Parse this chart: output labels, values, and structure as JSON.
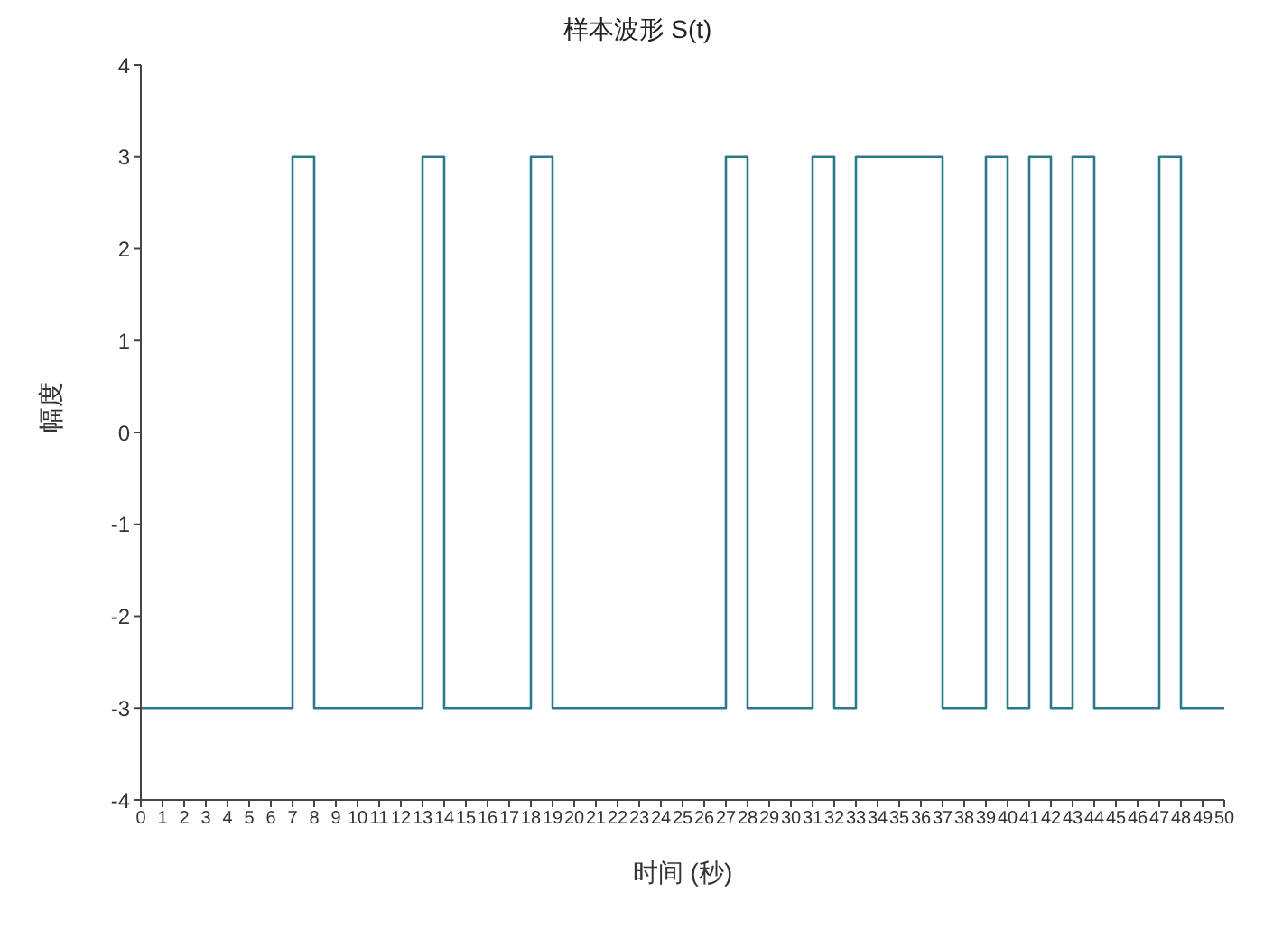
{
  "chart_data": {
    "type": "step",
    "title": "样本波形 S(t)",
    "xlabel": "时间 (秒)",
    "ylabel": "幅度",
    "x": [
      0,
      1,
      2,
      3,
      4,
      5,
      6,
      7,
      8,
      9,
      10,
      11,
      12,
      13,
      14,
      15,
      16,
      17,
      18,
      19,
      20,
      21,
      22,
      23,
      24,
      25,
      26,
      27,
      28,
      29,
      30,
      31,
      32,
      33,
      34,
      35,
      36,
      37,
      38,
      39,
      40,
      41,
      42,
      43,
      44,
      45,
      46,
      47,
      48,
      49,
      50
    ],
    "series": [
      {
        "color": "#2a7a8c",
        "values": [
          -3,
          -3,
          -3,
          -3,
          -3,
          -3,
          -3,
          3,
          -3,
          -3,
          -3,
          -3,
          -3,
          3,
          -3,
          -3,
          -3,
          -3,
          3,
          -3,
          -3,
          -3,
          -3,
          -3,
          -3,
          -3,
          -3,
          3,
          -3,
          -3,
          -3,
          3,
          -3,
          3,
          3,
          3,
          3,
          -3,
          -3,
          3,
          -3,
          3,
          -3,
          3,
          -3,
          -3,
          -3,
          3,
          -3,
          -3,
          -3
        ]
      }
    ],
    "xlim": [
      0,
      50
    ],
    "xticks": [
      0,
      1,
      2,
      3,
      4,
      5,
      6,
      7,
      8,
      9,
      10,
      11,
      12,
      13,
      14,
      15,
      16,
      17,
      18,
      19,
      20,
      21,
      22,
      23,
      24,
      25,
      26,
      27,
      28,
      29,
      30,
      31,
      32,
      33,
      34,
      35,
      36,
      37,
      38,
      39,
      40,
      41,
      42,
      43,
      44,
      45,
      46,
      47,
      48,
      49,
      50
    ],
    "ylim": [
      -4,
      4
    ],
    "yticks": [
      -4,
      -3,
      -2,
      -1,
      0,
      1,
      2,
      3,
      4
    ],
    "grid": false,
    "legend": false,
    "marker": "none",
    "line_style": "solid"
  }
}
